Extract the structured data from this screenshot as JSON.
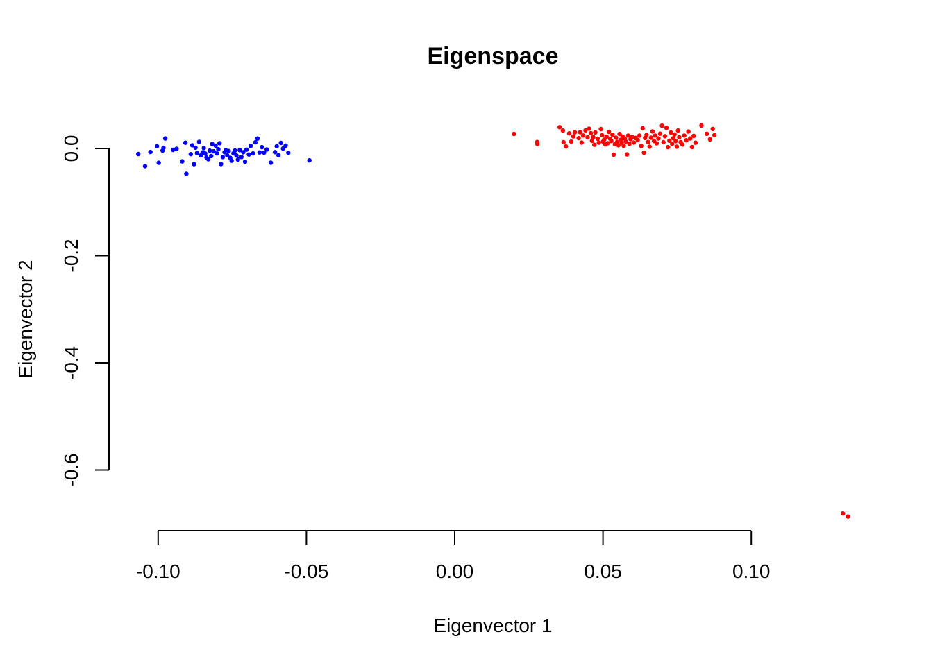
{
  "chart_data": {
    "type": "scatter",
    "title": "Eigenspace",
    "xlabel": "Eigenvector 1",
    "ylabel": "Eigenvector 2",
    "xlim": [
      -0.119,
      0.13
    ],
    "ylim": [
      -0.72,
      0.05
    ],
    "x_ticks": [
      -0.1,
      -0.05,
      0.0,
      0.05,
      0.1
    ],
    "x_tick_labels": [
      "-0.10",
      "-0.05",
      "0.00",
      "0.05",
      "0.10"
    ],
    "y_ticks": [
      0.0,
      -0.2,
      -0.4,
      -0.6
    ],
    "y_tick_labels": [
      "0.0",
      "-0.2",
      "-0.4",
      "-0.6"
    ],
    "grid": false,
    "series": [
      {
        "color": "#0000ff",
        "points": [
          [
            -0.1067,
            -0.0103
          ],
          [
            -0.1044,
            -0.033
          ],
          [
            -0.1026,
            -0.0066
          ],
          [
            -0.1004,
            0.004
          ],
          [
            -0.0998,
            -0.0267
          ],
          [
            -0.0985,
            -0.0039
          ],
          [
            -0.0982,
            0.0012
          ],
          [
            -0.0976,
            0.0187
          ],
          [
            -0.095,
            -0.0026
          ],
          [
            -0.0938,
            -0.0006
          ],
          [
            -0.0919,
            -0.0241
          ],
          [
            -0.0908,
            0.0107
          ],
          [
            -0.0905,
            -0.0473
          ],
          [
            -0.089,
            -0.0106
          ],
          [
            -0.0885,
            0.006
          ],
          [
            -0.0879,
            -0.0293
          ],
          [
            -0.0874,
            0.0014
          ],
          [
            -0.0869,
            -0.0087
          ],
          [
            -0.0862,
            0.0123
          ],
          [
            -0.0856,
            -0.0129
          ],
          [
            -0.085,
            -0.0072
          ],
          [
            -0.0846,
            0.0008
          ],
          [
            -0.0841,
            -0.0094
          ],
          [
            -0.0837,
            -0.0168
          ],
          [
            -0.0831,
            -0.0201
          ],
          [
            -0.0826,
            -0.004
          ],
          [
            -0.0821,
            -0.0141
          ],
          [
            -0.0818,
            0.0084
          ],
          [
            -0.0813,
            -0.0053
          ],
          [
            -0.0806,
            0.0052
          ],
          [
            -0.0802,
            -0.0093
          ],
          [
            -0.0797,
            -0.0014
          ],
          [
            -0.0793,
            0.0099
          ],
          [
            -0.0788,
            -0.0291
          ],
          [
            -0.0782,
            -0.0161
          ],
          [
            -0.0776,
            -0.007
          ],
          [
            -0.0772,
            -0.0033
          ],
          [
            -0.0767,
            -0.0128
          ],
          [
            -0.0762,
            -0.0048
          ],
          [
            -0.0757,
            -0.0175
          ],
          [
            -0.0752,
            -0.0228
          ],
          [
            -0.0746,
            -0.009
          ],
          [
            -0.0741,
            -0.0039
          ],
          [
            -0.0736,
            -0.0131
          ],
          [
            -0.0731,
            -0.0209
          ],
          [
            -0.0725,
            -0.0031
          ],
          [
            -0.0719,
            -0.0159
          ],
          [
            -0.0713,
            -0.0071
          ],
          [
            -0.0707,
            -0.0247
          ],
          [
            -0.0702,
            -0.0022
          ],
          [
            -0.0694,
            -0.0112
          ],
          [
            -0.0688,
            0.0048
          ],
          [
            -0.068,
            -0.0092
          ],
          [
            -0.0672,
            0.0115
          ],
          [
            -0.0665,
            0.0185
          ],
          [
            -0.0658,
            -0.0074
          ],
          [
            -0.065,
            0.0024
          ],
          [
            -0.0643,
            -0.0078
          ],
          [
            -0.0634,
            -0.002
          ],
          [
            -0.062,
            -0.0266
          ],
          [
            -0.0606,
            -0.0069
          ],
          [
            -0.06,
            0.0041
          ],
          [
            -0.0594,
            -0.0125
          ],
          [
            -0.0586,
            0.0103
          ],
          [
            -0.0579,
            -0.0001
          ],
          [
            -0.057,
            0.0054
          ],
          [
            -0.0561,
            -0.0081
          ],
          [
            -0.049,
            -0.0223
          ]
        ]
      },
      {
        "color": "#ff0000",
        "points": [
          [
            0.02,
            0.0272
          ],
          [
            0.0278,
            0.0121
          ],
          [
            0.0279,
            0.0081
          ],
          [
            0.0354,
            0.0397
          ],
          [
            0.0365,
            0.0334
          ],
          [
            0.0367,
            0.0116
          ],
          [
            0.0375,
            0.0038
          ],
          [
            0.0386,
            0.0282
          ],
          [
            0.0393,
            0.0128
          ],
          [
            0.04,
            0.0225
          ],
          [
            0.0405,
            0.0301
          ],
          [
            0.0418,
            0.0193
          ],
          [
            0.0423,
            0.0303
          ],
          [
            0.0428,
            0.011
          ],
          [
            0.0433,
            0.0242
          ],
          [
            0.0441,
            0.0338
          ],
          [
            0.0448,
            0.0209
          ],
          [
            0.0453,
            0.037
          ],
          [
            0.0459,
            0.0285
          ],
          [
            0.0463,
            0.0143
          ],
          [
            0.0467,
            0.0212
          ],
          [
            0.0471,
            0.0069
          ],
          [
            0.0474,
            0.03
          ],
          [
            0.0482,
            0.0184
          ],
          [
            0.0486,
            0.0109
          ],
          [
            0.0493,
            0.0362
          ],
          [
            0.0497,
            0.0246
          ],
          [
            0.05,
            0.0129
          ],
          [
            0.0504,
            0.0165
          ],
          [
            0.0508,
            0.0077
          ],
          [
            0.0512,
            0.022
          ],
          [
            0.0516,
            0.0098
          ],
          [
            0.052,
            0.0311
          ],
          [
            0.0524,
            0.0182
          ],
          [
            0.0528,
            0.014
          ],
          [
            0.0532,
            0.0256
          ],
          [
            0.0536,
            -0.0116
          ],
          [
            0.054,
            0.0081
          ],
          [
            0.0544,
            0.0202
          ],
          [
            0.0548,
            0.0124
          ],
          [
            0.0552,
            0.0059
          ],
          [
            0.0556,
            0.027
          ],
          [
            0.056,
            0.0161
          ],
          [
            0.0563,
            0.0103
          ],
          [
            0.0566,
            0.0224
          ],
          [
            0.057,
            0.0049
          ],
          [
            0.0573,
            0.0188
          ],
          [
            0.0577,
            0.013
          ],
          [
            0.0581,
            -0.0111
          ],
          [
            0.0585,
            0.0241
          ],
          [
            0.0589,
            0.0087
          ],
          [
            0.0593,
            0.0173
          ],
          [
            0.0598,
            0.0215
          ],
          [
            0.0604,
            0.011
          ],
          [
            0.061,
            0.0197
          ],
          [
            0.0617,
            0.0157
          ],
          [
            0.0623,
            0.0239
          ],
          [
            0.0629,
            0.0047
          ],
          [
            0.0634,
            0.0375
          ],
          [
            0.0638,
            -0.0078
          ],
          [
            0.0642,
            0.0196
          ],
          [
            0.0647,
            0.0253
          ],
          [
            0.0652,
            0.012
          ],
          [
            0.0657,
            0.0034
          ],
          [
            0.0662,
            0.0201
          ],
          [
            0.0667,
            0.0319
          ],
          [
            0.0672,
            0.014
          ],
          [
            0.0676,
            0.0241
          ],
          [
            0.0681,
            0.0096
          ],
          [
            0.0687,
            0.0186
          ],
          [
            0.0693,
            0.0276
          ],
          [
            0.0699,
            0.0425
          ],
          [
            0.0704,
            0.0116
          ],
          [
            0.0709,
            0.0229
          ],
          [
            0.0714,
            0.0384
          ],
          [
            0.0719,
            0.0025
          ],
          [
            0.0724,
            0.0145
          ],
          [
            0.0729,
            0.0298
          ],
          [
            0.0733,
            0.0086
          ],
          [
            0.0737,
            0.0192
          ],
          [
            0.0741,
            0.0262
          ],
          [
            0.0745,
            0.0137
          ],
          [
            0.0749,
            0.0034
          ],
          [
            0.0753,
            0.0335
          ],
          [
            0.0757,
            0.021
          ],
          [
            0.0762,
            0.0118
          ],
          [
            0.0768,
            0.0073
          ],
          [
            0.0774,
            0.0241
          ],
          [
            0.0781,
            0.0153
          ],
          [
            0.0788,
            0.0316
          ],
          [
            0.0794,
            0.0187
          ],
          [
            0.08,
            0.0027
          ],
          [
            0.0806,
            0.0236
          ],
          [
            0.0812,
            0.0107
          ],
          [
            0.0832,
            0.0428
          ],
          [
            0.085,
            0.0275
          ],
          [
            0.0861,
            0.0171
          ],
          [
            0.087,
            0.0365
          ],
          [
            0.0876,
            0.0249
          ],
          [
            0.1309,
            -0.681
          ],
          [
            0.1326,
            -0.6868
          ]
        ]
      }
    ]
  }
}
